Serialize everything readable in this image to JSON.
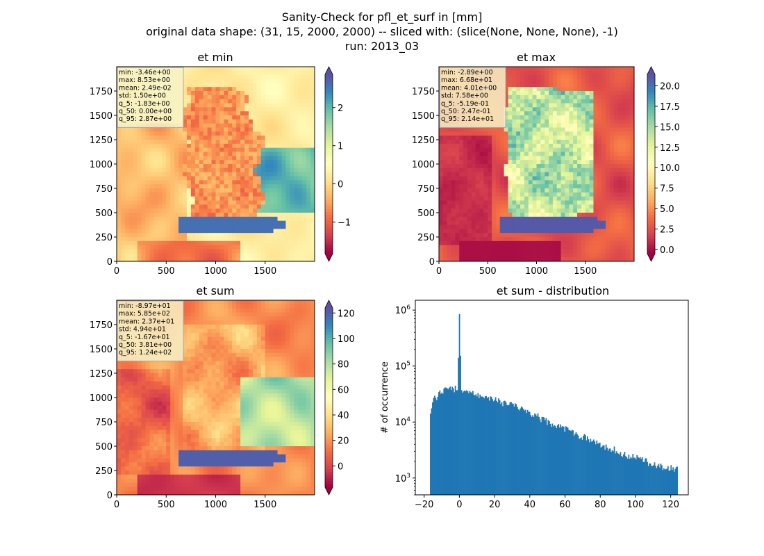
{
  "figure": {
    "title_lines": [
      "Sanity-Check for pfl_et_surf in [mm]",
      "original data shape: (31, 15, 2000, 2000) -- sliced with: (slice(None, None, None), -1)",
      "run: 2013_03"
    ]
  },
  "colormap": {
    "name": "Spectral",
    "stops": [
      "#9e0142",
      "#d53e4f",
      "#f46d43",
      "#fdae61",
      "#fee08b",
      "#ffffbf",
      "#e6f598",
      "#abdda4",
      "#66c2a5",
      "#3288bd",
      "#5e4fa2"
    ]
  },
  "chart_data": [
    {
      "type": "heatmap",
      "title": "et min",
      "xlim": [
        0,
        2000
      ],
      "ylim": [
        0,
        2000
      ],
      "xticks": [
        "0",
        "500",
        "1000",
        "1500"
      ],
      "yticks": [
        "0",
        "250",
        "500",
        "750",
        "1000",
        "1250",
        "1500",
        "1750"
      ],
      "colorbar": {
        "min": -1.83,
        "max": 2.87,
        "ticks": [
          -1,
          0,
          1,
          2
        ],
        "tick_labels": [
          "−1",
          "0",
          "1",
          "2"
        ],
        "extend": "both"
      },
      "stats": [
        "min: -3.46e+00",
        "max: 8.53e+00",
        "mean: 2.49e-02",
        "std: 1.50e+00",
        "q_5: -1.83e+00",
        "q_50: 0.00e+00",
        "q_95: 2.87e+00"
      ]
    },
    {
      "type": "heatmap",
      "title": "et max",
      "xlim": [
        0,
        2000
      ],
      "ylim": [
        0,
        2000
      ],
      "xticks": [
        "0",
        "500",
        "1000",
        "1500"
      ],
      "yticks": [
        "0",
        "250",
        "500",
        "750",
        "1000",
        "1250",
        "1500",
        "1750"
      ],
      "colorbar": {
        "min": -0.519,
        "max": 21.4,
        "ticks": [
          0,
          2.5,
          5,
          7.5,
          10,
          12.5,
          15,
          17.5,
          20
        ],
        "tick_labels": [
          "0.0",
          "2.5",
          "5.0",
          "7.5",
          "10.0",
          "12.5",
          "15.0",
          "17.5",
          "20.0"
        ],
        "extend": "both"
      },
      "stats": [
        "min: -2.89e+00",
        "max: 6.68e+01",
        "mean: 4.01e+00",
        "std: 7.58e+00",
        "q_5: -5.19e-01",
        "q_50: 2.47e-01",
        "q_95: 2.14e+01"
      ]
    },
    {
      "type": "heatmap",
      "title": "et sum",
      "xlim": [
        0,
        2000
      ],
      "ylim": [
        0,
        2000
      ],
      "xticks": [
        "0",
        "500",
        "1000",
        "1500"
      ],
      "yticks": [
        "0",
        "250",
        "500",
        "750",
        "1000",
        "1250",
        "1500",
        "1750"
      ],
      "colorbar": {
        "min": -16.7,
        "max": 124,
        "ticks": [
          0,
          20,
          40,
          60,
          80,
          100,
          120
        ],
        "tick_labels": [
          "0",
          "20",
          "40",
          "60",
          "80",
          "100",
          "120"
        ],
        "extend": "both"
      },
      "stats": [
        "min: -8.97e+01",
        "max: 5.85e+02",
        "mean: 2.37e+01",
        "std: 4.94e+01",
        "q_5: -1.67e+01",
        "q_50: 3.81e+00",
        "q_95: 1.24e+02"
      ]
    },
    {
      "type": "bar",
      "title": "et sum - distribution",
      "ylabel": "# of occurrence",
      "yscale": "log",
      "xlim": [
        -25,
        130
      ],
      "ylim": [
        500,
        1500000
      ],
      "xticks": [
        -20,
        0,
        20,
        40,
        60,
        80,
        100,
        120
      ],
      "xtick_labels": [
        "−20",
        "0",
        "20",
        "40",
        "60",
        "80",
        "100",
        "120"
      ],
      "yticks": [
        1000,
        10000,
        100000,
        1000000
      ],
      "ytick_bases": [
        "10",
        "10",
        "10",
        "10"
      ],
      "ytick_exps": [
        "3",
        "4",
        "5",
        "6"
      ],
      "bin_edges_range": [
        -16.7,
        124
      ],
      "bar_color": "#1f77b4",
      "profile": [
        [
          -16.7,
          14000
        ],
        [
          -15,
          25000
        ],
        [
          -12,
          30000
        ],
        [
          -8,
          42000
        ],
        [
          -4,
          40000
        ],
        [
          -1,
          38000
        ],
        [
          0,
          850000
        ],
        [
          1,
          38000
        ],
        [
          5,
          34000
        ],
        [
          10,
          31000
        ],
        [
          15,
          28000
        ],
        [
          20,
          25000
        ],
        [
          30,
          20000
        ],
        [
          40,
          15000
        ],
        [
          50,
          10000
        ],
        [
          60,
          7500
        ],
        [
          70,
          5500
        ],
        [
          80,
          4000
        ],
        [
          90,
          3000
        ],
        [
          100,
          2300
        ],
        [
          110,
          1800
        ],
        [
          120,
          1500
        ],
        [
          124,
          1400
        ]
      ]
    }
  ]
}
